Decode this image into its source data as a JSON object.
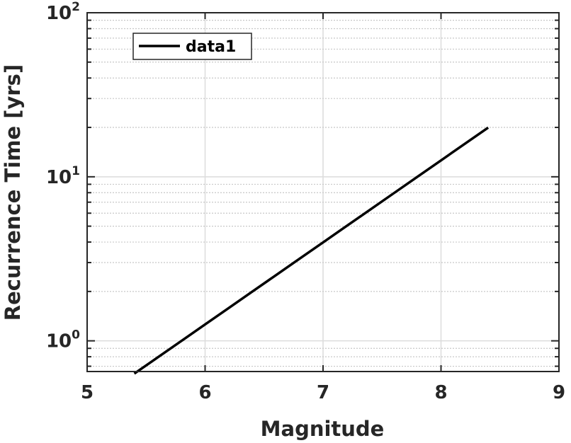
{
  "chart_data": {
    "type": "line",
    "title": "",
    "xlabel": "Magnitude",
    "ylabel": "Recurrence Time [yrs]",
    "x_scale": "linear",
    "y_scale": "log",
    "xlim": [
      5,
      9
    ],
    "ylim": [
      0.65,
      100
    ],
    "x_ticks": [
      "5",
      "6",
      "7",
      "8",
      "9"
    ],
    "y_ticks": [
      {
        "value": 1,
        "base": "10",
        "exp": "0"
      },
      {
        "value": 10,
        "base": "10",
        "exp": "1"
      },
      {
        "value": 100,
        "base": "10",
        "exp": "2"
      }
    ],
    "grid": true,
    "minor_grid_y": true,
    "legend": {
      "position": "top-left",
      "entries": [
        "data1"
      ]
    },
    "series": [
      {
        "name": "data1",
        "color": "#000000",
        "x": [
          5.4,
          5.6,
          5.8,
          6.0,
          6.2,
          6.4,
          6.6,
          6.8,
          7.0,
          7.2,
          7.4,
          7.6,
          7.8,
          8.0,
          8.2,
          8.4
        ],
        "y": [
          0.631,
          0.794,
          1.0,
          1.259,
          1.585,
          1.995,
          2.512,
          3.162,
          3.981,
          5.012,
          6.31,
          7.943,
          10.0,
          12.59,
          15.85,
          19.95
        ]
      }
    ]
  }
}
